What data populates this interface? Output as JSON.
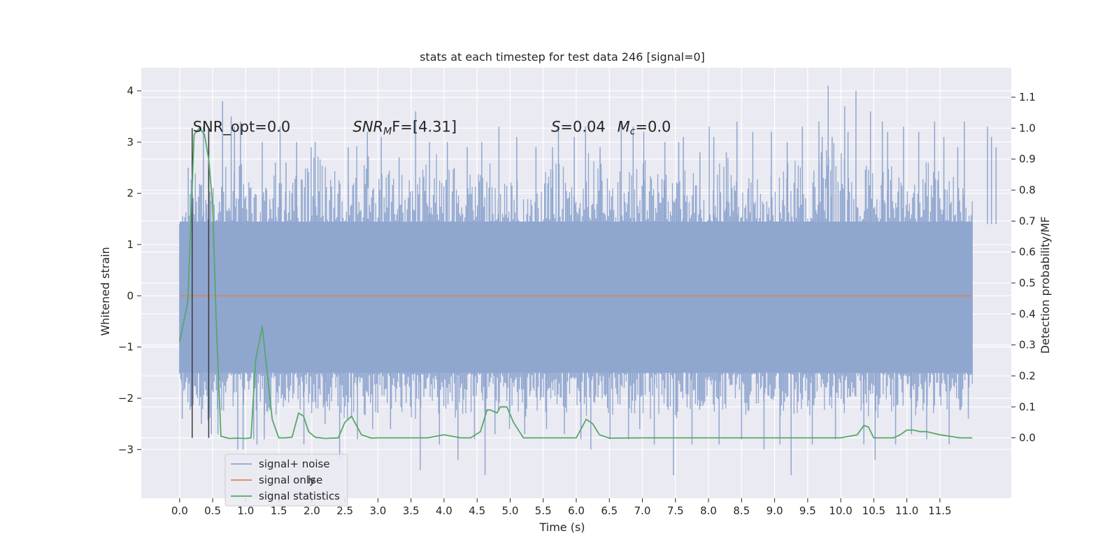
{
  "chart_data": {
    "type": "line",
    "title": "stats at each timestep for test data 246 [signal=0]",
    "xlabel": "Time (s)",
    "ylabel": "Whitened strain",
    "ylabel_right": "Detection probability/MF",
    "xlim": [
      -0.58,
      12.58
    ],
    "ylim": [
      -3.95,
      4.45
    ],
    "ylim_right": [
      -0.195,
      1.195
    ],
    "x_ticks": [
      0.0,
      0.5,
      1.0,
      1.5,
      2.0,
      2.5,
      3.0,
      3.5,
      4.0,
      4.5,
      5.0,
      5.5,
      6.0,
      6.5,
      7.0,
      7.5,
      8.0,
      8.5,
      9.0,
      9.5,
      10.0,
      10.5,
      11.0,
      11.5
    ],
    "x_tick_labels": [
      "0.0",
      "0.5",
      "1.0",
      "1.5",
      "2.0",
      "2.5",
      "3.0",
      "3.5",
      "4.0",
      "4.5",
      "5.0",
      "5.5",
      "6.0",
      "6.5",
      "7.0",
      "7.5",
      "8.0",
      "8.5",
      "9.0",
      "9.5",
      "10.0",
      "10.5",
      "11.0",
      "11.5"
    ],
    "y_ticks": [
      -3,
      -2,
      -1,
      0,
      1,
      2,
      3,
      4
    ],
    "y_tick_labels": [
      "−3",
      "−2",
      "−1",
      "0",
      "1",
      "2",
      "3",
      "4"
    ],
    "y_right_ticks": [
      0.0,
      0.1,
      0.2,
      0.3,
      0.4,
      0.5,
      0.6,
      0.7,
      0.8,
      0.9,
      1.0,
      1.1
    ],
    "y_right_tick_labels": [
      "0.0",
      "0.1",
      "0.2",
      "0.3",
      "0.4",
      "0.5",
      "0.6",
      "0.7",
      "0.8",
      "0.9",
      "1.0",
      "1.1"
    ],
    "grid": true,
    "legend_position": "bottom-left",
    "series": [
      {
        "name": "signal+ noise",
        "axis": "left",
        "color": "#8fa6cf",
        "x_range": [
          0.0,
          11.99
        ],
        "envelope_upper": [
          [
            0.0,
            1.2
          ],
          [
            0.1,
            2.4
          ],
          [
            0.25,
            2.5
          ],
          [
            0.4,
            2.6
          ],
          [
            0.5,
            2.6
          ],
          [
            0.65,
            2.9
          ],
          [
            0.8,
            2.6
          ],
          [
            0.9,
            3.4
          ],
          [
            1.0,
            2.3
          ],
          [
            1.15,
            2.1
          ],
          [
            1.25,
            2.0
          ],
          [
            1.4,
            2.4
          ],
          [
            1.5,
            2.3
          ],
          [
            1.7,
            2.2
          ],
          [
            1.9,
            2.8
          ],
          [
            2.0,
            3.0
          ],
          [
            2.3,
            2.5
          ],
          [
            2.5,
            2.4
          ],
          [
            2.7,
            3.1
          ],
          [
            3.0,
            2.4
          ],
          [
            3.3,
            2.8
          ],
          [
            3.5,
            2.4
          ],
          [
            3.7,
            2.6
          ],
          [
            4.0,
            2.9
          ],
          [
            4.3,
            2.4
          ],
          [
            4.5,
            2.4
          ],
          [
            4.7,
            2.7
          ],
          [
            5.0,
            2.3
          ],
          [
            5.3,
            2.5
          ],
          [
            5.5,
            2.4
          ],
          [
            5.7,
            2.8
          ],
          [
            6.0,
            2.2
          ],
          [
            6.2,
            3.1
          ],
          [
            6.5,
            2.6
          ],
          [
            6.7,
            2.5
          ],
          [
            7.0,
            2.9
          ],
          [
            7.3,
            2.3
          ],
          [
            7.5,
            2.6
          ],
          [
            7.7,
            2.4
          ],
          [
            8.0,
            2.5
          ],
          [
            8.2,
            2.9
          ],
          [
            8.5,
            2.3
          ],
          [
            8.7,
            2.5
          ],
          [
            9.0,
            2.4
          ],
          [
            9.2,
            2.6
          ],
          [
            9.5,
            2.8
          ],
          [
            9.7,
            3.4
          ],
          [
            10.0,
            2.9
          ],
          [
            10.2,
            2.6
          ],
          [
            10.5,
            2.5
          ],
          [
            10.7,
            2.6
          ],
          [
            11.0,
            2.3
          ],
          [
            11.3,
            2.8
          ],
          [
            11.5,
            2.4
          ],
          [
            11.8,
            2.7
          ],
          [
            11.99,
            2.0
          ]
        ],
        "envelope_lower": [
          [
            0.0,
            -1.6
          ],
          [
            0.15,
            -2.3
          ],
          [
            0.3,
            -2.3
          ],
          [
            0.5,
            -2.6
          ],
          [
            0.7,
            -2.4
          ],
          [
            1.0,
            -2.2
          ],
          [
            1.2,
            -2.3
          ],
          [
            1.5,
            -2.4
          ],
          [
            1.7,
            -2.2
          ],
          [
            2.0,
            -2.4
          ],
          [
            2.3,
            -2.3
          ],
          [
            2.5,
            -2.5
          ],
          [
            2.7,
            -2.3
          ],
          [
            3.0,
            -2.4
          ],
          [
            3.3,
            -2.2
          ],
          [
            3.5,
            -2.5
          ],
          [
            3.7,
            -2.3
          ],
          [
            4.0,
            -2.4
          ],
          [
            4.3,
            -2.5
          ],
          [
            4.5,
            -2.2
          ],
          [
            4.7,
            -2.4
          ],
          [
            5.0,
            -2.3
          ],
          [
            5.3,
            -2.5
          ],
          [
            5.5,
            -2.3
          ],
          [
            5.7,
            -2.2
          ],
          [
            6.0,
            -2.4
          ],
          [
            6.3,
            -2.3
          ],
          [
            6.5,
            -2.4
          ],
          [
            6.7,
            -2.2
          ],
          [
            7.0,
            -2.5
          ],
          [
            7.3,
            -2.3
          ],
          [
            7.5,
            -2.4
          ],
          [
            7.7,
            -2.3
          ],
          [
            8.0,
            -2.4
          ],
          [
            8.3,
            -2.2
          ],
          [
            8.5,
            -2.4
          ],
          [
            8.7,
            -2.3
          ],
          [
            9.0,
            -2.5
          ],
          [
            9.3,
            -2.3
          ],
          [
            9.5,
            -2.4
          ],
          [
            9.7,
            -2.3
          ],
          [
            10.0,
            -2.4
          ],
          [
            10.3,
            -2.3
          ],
          [
            10.5,
            -2.5
          ],
          [
            10.7,
            -2.3
          ],
          [
            11.0,
            -2.4
          ],
          [
            11.3,
            -2.3
          ],
          [
            11.5,
            -2.4
          ],
          [
            11.8,
            -2.3
          ],
          [
            11.99,
            -1.8
          ]
        ],
        "spikes": [
          [
            0.04,
            -2.4
          ],
          [
            0.13,
            2.5
          ],
          [
            0.33,
            -2.5
          ],
          [
            0.36,
            3.3
          ],
          [
            0.44,
            3.1
          ],
          [
            0.48,
            -2.7
          ],
          [
            0.58,
            -2.7
          ],
          [
            0.65,
            3.8
          ],
          [
            0.78,
            3.5
          ],
          [
            0.83,
            3.3
          ],
          [
            0.88,
            -3.0
          ],
          [
            0.92,
            3.4
          ],
          [
            0.96,
            -3.0
          ],
          [
            1.12,
            -2.8
          ],
          [
            1.17,
            -2.9
          ],
          [
            1.25,
            3.0
          ],
          [
            1.28,
            -2.8
          ],
          [
            1.45,
            2.6
          ],
          [
            1.52,
            3.3
          ],
          [
            1.61,
            2.6
          ],
          [
            1.77,
            3.0
          ],
          [
            1.88,
            -2.9
          ],
          [
            1.99,
            2.9
          ],
          [
            2.05,
            3.0
          ],
          [
            2.2,
            -2.5
          ],
          [
            2.42,
            -3.2
          ],
          [
            2.55,
            2.9
          ],
          [
            2.69,
            -2.8
          ],
          [
            2.84,
            3.2
          ],
          [
            2.92,
            -2.6
          ],
          [
            3.05,
            3.1
          ],
          [
            3.19,
            -2.6
          ],
          [
            3.32,
            2.7
          ],
          [
            3.57,
            3.6
          ],
          [
            3.64,
            -3.4
          ],
          [
            3.78,
            3.0
          ],
          [
            3.93,
            -2.9
          ],
          [
            4.05,
            3.0
          ],
          [
            4.21,
            -3.2
          ],
          [
            4.35,
            2.9
          ],
          [
            4.46,
            -2.8
          ],
          [
            4.57,
            3.0
          ],
          [
            4.62,
            -3.5
          ],
          [
            4.77,
            -2.7
          ],
          [
            4.83,
            3.3
          ],
          [
            4.99,
            -2.6
          ],
          [
            5.1,
            3.1
          ],
          [
            5.22,
            -2.7
          ],
          [
            5.39,
            2.9
          ],
          [
            5.55,
            -2.6
          ],
          [
            5.64,
            2.9
          ],
          [
            5.73,
            3.3
          ],
          [
            5.82,
            -2.7
          ],
          [
            5.97,
            3.1
          ],
          [
            6.07,
            -2.8
          ],
          [
            6.14,
            3.3
          ],
          [
            6.22,
            -3.0
          ],
          [
            6.36,
            2.9
          ],
          [
            6.51,
            -2.8
          ],
          [
            6.68,
            3.4
          ],
          [
            6.79,
            -2.8
          ],
          [
            6.86,
            3.3
          ],
          [
            6.96,
            -2.6
          ],
          [
            7.02,
            3.2
          ],
          [
            7.18,
            -2.9
          ],
          [
            7.34,
            3.0
          ],
          [
            7.47,
            -3.5
          ],
          [
            7.55,
            3.0
          ],
          [
            7.62,
            3.1
          ],
          [
            7.75,
            -2.9
          ],
          [
            7.87,
            2.8
          ],
          [
            8.01,
            3.3
          ],
          [
            8.08,
            3.1
          ],
          [
            8.16,
            -2.9
          ],
          [
            8.27,
            2.8
          ],
          [
            8.43,
            3.4
          ],
          [
            8.5,
            -2.8
          ],
          [
            8.67,
            3.2
          ],
          [
            8.84,
            -3.0
          ],
          [
            8.95,
            3.2
          ],
          [
            9.08,
            -2.9
          ],
          [
            9.19,
            3.0
          ],
          [
            9.25,
            -3.5
          ],
          [
            9.42,
            3.3
          ],
          [
            9.57,
            -2.9
          ],
          [
            9.67,
            3.4
          ],
          [
            9.72,
            3.1
          ],
          [
            9.81,
            4.1
          ],
          [
            9.87,
            3.1
          ],
          [
            9.92,
            -2.8
          ],
          [
            10.06,
            3.7
          ],
          [
            10.11,
            3.2
          ],
          [
            10.23,
            4.0
          ],
          [
            10.35,
            -2.9
          ],
          [
            10.45,
            3.6
          ],
          [
            10.52,
            -3.2
          ],
          [
            10.63,
            3.4
          ],
          [
            10.71,
            3.2
          ],
          [
            10.83,
            -2.9
          ],
          [
            10.95,
            3.3
          ],
          [
            11.07,
            -2.7
          ],
          [
            11.18,
            3.2
          ],
          [
            11.3,
            -2.8
          ],
          [
            11.42,
            3.4
          ],
          [
            11.56,
            3.1
          ],
          [
            11.64,
            -2.9
          ],
          [
            11.77,
            2.9
          ],
          [
            11.87,
            3.4
          ],
          [
            11.93,
            -2.4
          ],
          [
            12.22,
            3.3
          ],
          [
            12.28,
            3.1
          ],
          [
            12.35,
            2.9
          ]
        ],
        "gaps": [
          0.43,
          2.85,
          4.8,
          5.82,
          6.9,
          9.78,
          10.6
        ]
      },
      {
        "name": "signal only",
        "axis": "left",
        "color": "#dd8452",
        "x": [
          0.0,
          11.99
        ],
        "y": [
          0.0,
          0.0
        ]
      },
      {
        "name": "signal statistics",
        "axis": "right",
        "color": "#55a868",
        "x": [
          0.0,
          0.125,
          0.22,
          0.3,
          0.375,
          0.44,
          0.5,
          0.55,
          0.625,
          0.75,
          0.875,
          1.0,
          1.08,
          1.15,
          1.25,
          1.32,
          1.4,
          1.5,
          1.6,
          1.7,
          1.8,
          1.875,
          1.95,
          2.05,
          2.2,
          2.4,
          2.5,
          2.6,
          2.75,
          2.9,
          3.0,
          3.5,
          3.75,
          4.0,
          4.25,
          4.4,
          4.55,
          4.65,
          4.7,
          4.8,
          4.85,
          4.95,
          5.05,
          5.2,
          5.5,
          6.0,
          6.1,
          6.15,
          6.25,
          6.35,
          6.5,
          7.0,
          7.5,
          8.0,
          8.5,
          9.0,
          9.5,
          10.0,
          10.25,
          10.35,
          10.42,
          10.5,
          10.6,
          10.8,
          10.9,
          11.0,
          11.1,
          11.2,
          11.3,
          11.5,
          11.8,
          11.99
        ],
        "y": [
          0.31,
          0.44,
          0.98,
          1.0,
          0.98,
          0.9,
          0.75,
          0.4,
          0.005,
          -0.002,
          -0.001,
          -0.002,
          0.0,
          0.25,
          0.36,
          0.22,
          0.06,
          0.0,
          0.0,
          0.002,
          0.08,
          0.07,
          0.02,
          0.002,
          -0.002,
          0.0,
          0.05,
          0.07,
          0.01,
          -0.001,
          0.0,
          0.0,
          0.0,
          0.01,
          0.0,
          0.0,
          0.02,
          0.09,
          0.09,
          0.08,
          0.1,
          0.1,
          0.05,
          0.0,
          0.0,
          0.0,
          0.04,
          0.06,
          0.045,
          0.01,
          -0.001,
          0.0,
          0.0,
          0.0,
          0.0,
          0.0,
          0.0,
          0.0,
          0.01,
          0.04,
          0.035,
          0.0,
          0.0,
          0.0,
          0.01,
          0.025,
          0.025,
          0.02,
          0.02,
          0.01,
          0.0,
          0.0
        ]
      }
    ],
    "vertical_markers": [
      0.19,
      0.44
    ],
    "annotations": [
      {
        "x": 0.2,
        "y": 3.3,
        "label": "SNR_opt=0.0"
      },
      {
        "x": 2.62,
        "y": 3.3,
        "label": "SNR",
        "sub": "M",
        "suffix": "F=[4.31]",
        "italic_label": true
      },
      {
        "x": 5.62,
        "y": 3.3,
        "label": "S",
        "suffix": "=0.04",
        "italic_label": true
      },
      {
        "x": 6.62,
        "y": 3.3,
        "label": "M",
        "sub": "c",
        "suffix": "=0.0",
        "italic_label": true
      }
    ],
    "legend": {
      "entries": [
        {
          "label": "signal+ noise",
          "color": "#8fa6cf"
        },
        {
          "label": "signal only",
          "color": "#dd8452"
        },
        {
          "label": "signal statistics",
          "color": "#55a868"
        }
      ],
      "ghost_text": "ise"
    }
  }
}
